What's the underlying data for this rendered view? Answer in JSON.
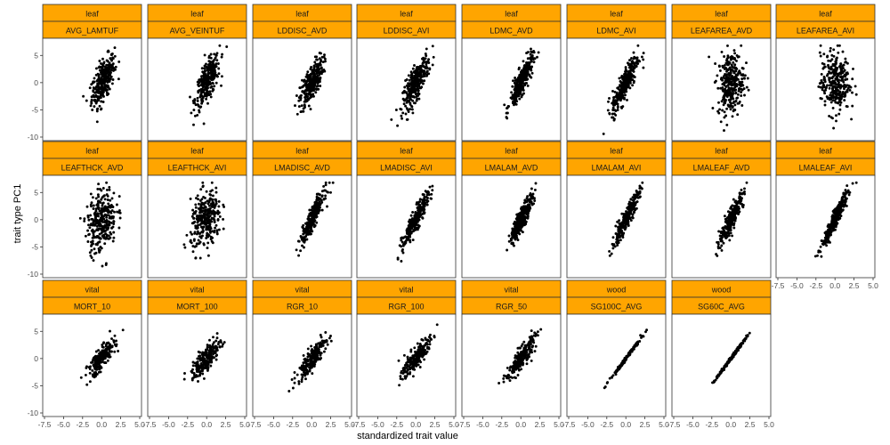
{
  "chart_data": {
    "type": "scatter",
    "title": "",
    "xlabel": "standardized trait value",
    "ylabel": "trait type PC1",
    "xlim": [
      -7.5,
      5.0
    ],
    "ylim": [
      -10,
      7.5
    ],
    "xticks": [
      -7.5,
      -5.0,
      -2.5,
      0.0,
      2.5,
      5.0
    ],
    "xtick_labels": [
      "-7.5",
      "-5.0",
      "-2.5",
      "0.0",
      "2.5",
      "5.0"
    ],
    "yticks": [
      5,
      0,
      -5,
      -10
    ],
    "ytick_labels": [
      "5",
      "0",
      "-5",
      "-10"
    ],
    "grid": false,
    "colors": {
      "strip_fill": "#FFA500",
      "point": "#000000",
      "border": "#333333"
    },
    "panels": [
      {
        "group": "leaf",
        "trait": "AVG_LAMTUF",
        "slope": 1.9,
        "x_center": 0.2,
        "x_spread": 0.75,
        "y_noise": 1.8,
        "n": 300
      },
      {
        "group": "leaf",
        "trait": "AVG_VEINTUF",
        "slope": 2.0,
        "x_center": 0.1,
        "x_spread": 0.8,
        "y_noise": 1.7,
        "n": 300
      },
      {
        "group": "leaf",
        "trait": "LDDISC_AVD",
        "slope": 2.1,
        "x_center": 0.0,
        "x_spread": 0.75,
        "y_noise": 1.6,
        "n": 300
      },
      {
        "group": "leaf",
        "trait": "LDDISC_AVI",
        "slope": 2.2,
        "x_center": 0.0,
        "x_spread": 0.85,
        "y_noise": 1.5,
        "n": 300
      },
      {
        "group": "leaf",
        "trait": "LDMC_AVD",
        "slope": 2.6,
        "x_center": 0.1,
        "x_spread": 0.75,
        "y_noise": 1.2,
        "n": 300
      },
      {
        "group": "leaf",
        "trait": "LDMC_AVI",
        "slope": 2.5,
        "x_center": -0.1,
        "x_spread": 0.85,
        "y_noise": 1.4,
        "n": 300
      },
      {
        "group": "leaf",
        "trait": "LEAFAREA_AVD",
        "slope": 0.4,
        "x_center": 0.0,
        "x_spread": 0.85,
        "y_noise": 2.8,
        "n": 300
      },
      {
        "group": "leaf",
        "trait": "LEAFAREA_AVI",
        "slope": 0.2,
        "x_center": 0.0,
        "x_spread": 0.95,
        "y_noise": 2.8,
        "n": 300
      },
      {
        "group": "leaf",
        "trait": "LEAFTHCK_AVD",
        "slope": 0.8,
        "x_center": 0.0,
        "x_spread": 0.95,
        "y_noise": 2.8,
        "n": 300
      },
      {
        "group": "leaf",
        "trait": "LEAFTHCK_AVI",
        "slope": 0.8,
        "x_center": -0.1,
        "x_spread": 1.0,
        "y_noise": 2.5,
        "n": 300
      },
      {
        "group": "leaf",
        "trait": "LMADISC_AVD",
        "slope": 2.7,
        "x_center": 0.1,
        "x_spread": 0.75,
        "y_noise": 1.0,
        "n": 300
      },
      {
        "group": "leaf",
        "trait": "LMADISC_AVI",
        "slope": 2.6,
        "x_center": 0.0,
        "x_spread": 0.85,
        "y_noise": 1.0,
        "n": 300
      },
      {
        "group": "leaf",
        "trait": "LMALAM_AVD",
        "slope": 2.7,
        "x_center": 0.1,
        "x_spread": 0.75,
        "y_noise": 1.0,
        "n": 300
      },
      {
        "group": "leaf",
        "trait": "LMALAM_AVI",
        "slope": 2.8,
        "x_center": 0.0,
        "x_spread": 0.9,
        "y_noise": 0.9,
        "n": 300
      },
      {
        "group": "leaf",
        "trait": "LMALEAF_AVD",
        "slope": 2.7,
        "x_center": 0.1,
        "x_spread": 0.8,
        "y_noise": 1.0,
        "n": 300
      },
      {
        "group": "leaf",
        "trait": "LMALEAF_AVI",
        "slope": 2.9,
        "x_center": 0.0,
        "x_spread": 0.85,
        "y_noise": 0.8,
        "n": 300
      },
      {
        "group": "vital",
        "trait": "MORT_10",
        "slope": 1.6,
        "x_center": 0.0,
        "x_spread": 0.9,
        "y_noise": 1.0,
        "n": 220
      },
      {
        "group": "vital",
        "trait": "MORT_100",
        "slope": 1.4,
        "x_center": 0.0,
        "x_spread": 0.95,
        "y_noise": 1.1,
        "n": 220
      },
      {
        "group": "vital",
        "trait": "RGR_10",
        "slope": 1.7,
        "x_center": 0.0,
        "x_spread": 0.95,
        "y_noise": 1.0,
        "n": 220
      },
      {
        "group": "vital",
        "trait": "RGR_100",
        "slope": 1.6,
        "x_center": 0.0,
        "x_spread": 0.95,
        "y_noise": 1.0,
        "n": 220
      },
      {
        "group": "vital",
        "trait": "RGR_50",
        "slope": 1.7,
        "x_center": 0.0,
        "x_spread": 0.95,
        "y_noise": 1.0,
        "n": 220
      },
      {
        "group": "wood",
        "trait": "SG100C_AVG",
        "slope": 1.9,
        "x_center": 0.0,
        "x_spread": 1.0,
        "y_noise": 0.15,
        "n": 200
      },
      {
        "group": "wood",
        "trait": "SG60C_AVG",
        "slope": 1.9,
        "x_center": 0.0,
        "x_spread": 1.0,
        "y_noise": 0.15,
        "n": 200
      }
    ]
  }
}
